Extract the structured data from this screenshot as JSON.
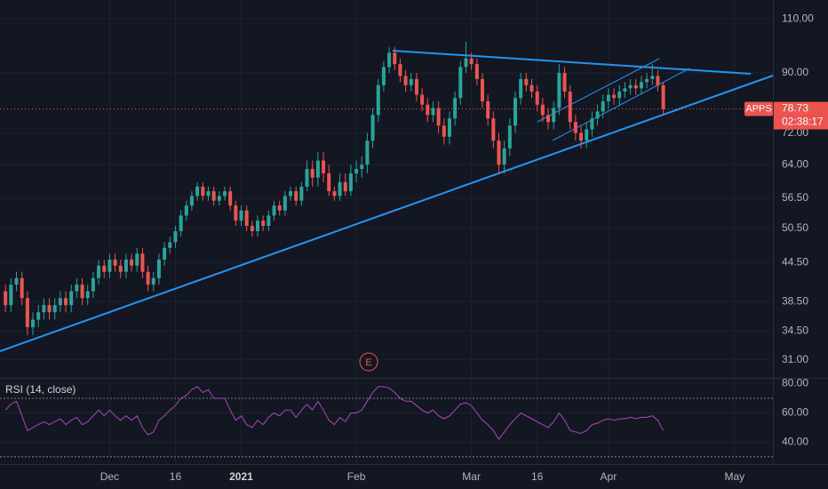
{
  "chart_data": [
    {
      "type": "candlestick",
      "symbol": "APPS",
      "last_price": 78.73,
      "countdown": "02:38:17",
      "event_marker": "E",
      "up_color": "#26a69a",
      "down_color": "#ef5350",
      "log_scale": true,
      "grid": true,
      "open": [
        40,
        38,
        41,
        42,
        39,
        35,
        36,
        37,
        38,
        37,
        38,
        39,
        38,
        40,
        41,
        39,
        40,
        42,
        44,
        43,
        45,
        44,
        43,
        45,
        44,
        46,
        43,
        41,
        42,
        45,
        47,
        48,
        50,
        53,
        55,
        57,
        59,
        57,
        58,
        56,
        57,
        58,
        55,
        52,
        54,
        51,
        50,
        52,
        51,
        53,
        55,
        54,
        57,
        58,
        56,
        59,
        63,
        61,
        65,
        62,
        58,
        57,
        60,
        58,
        62,
        63,
        64,
        70,
        77,
        86,
        92,
        97,
        93,
        89,
        86,
        88,
        83,
        80,
        77,
        79,
        74,
        71,
        76,
        82,
        92,
        95,
        93,
        88,
        81,
        76,
        70,
        64,
        68,
        74,
        82,
        88,
        86,
        84,
        80,
        77,
        75,
        79,
        90,
        84,
        75,
        72,
        70,
        73,
        76,
        78,
        81,
        83,
        82,
        84,
        85,
        86,
        85,
        87,
        88,
        89,
        86
      ],
      "high": [
        41,
        42,
        43,
        43,
        40,
        37,
        38,
        39,
        39,
        39,
        40,
        40,
        41,
        42,
        42,
        41,
        43,
        45,
        45,
        46,
        46,
        45,
        46,
        46,
        47,
        47,
        44,
        43,
        46,
        48,
        49,
        51,
        54,
        56,
        58,
        60,
        60,
        59,
        59,
        58,
        59,
        59,
        56,
        55,
        55,
        52,
        53,
        53,
        54,
        56,
        56,
        58,
        59,
        59,
        60,
        65,
        65,
        67,
        67,
        64,
        59,
        62,
        62,
        64,
        65,
        66,
        72,
        79,
        88,
        94,
        99,
        99,
        95,
        91,
        90,
        90,
        85,
        82,
        81,
        81,
        76,
        78,
        84,
        94,
        101,
        97,
        95,
        90,
        83,
        78,
        72,
        70,
        76,
        84,
        90,
        90,
        88,
        86,
        82,
        79,
        81,
        93,
        92,
        86,
        77,
        74,
        75,
        78,
        80,
        83,
        85,
        85,
        86,
        87,
        88,
        88,
        89,
        90,
        93,
        91,
        87
      ],
      "low": [
        37,
        37,
        40,
        38,
        34,
        34,
        35,
        36,
        36,
        36,
        37,
        37,
        37,
        39,
        38,
        38,
        39,
        41,
        42,
        42,
        43,
        42,
        42,
        43,
        43,
        42,
        40,
        40,
        41,
        44,
        46,
        47,
        49,
        52,
        54,
        56,
        56,
        56,
        55,
        55,
        56,
        54,
        51,
        51,
        50,
        49,
        49,
        50,
        50,
        52,
        53,
        53,
        56,
        55,
        55,
        58,
        59,
        59,
        60,
        57,
        56,
        56,
        57,
        57,
        60,
        61,
        62,
        68,
        75,
        84,
        90,
        91,
        87,
        84,
        84,
        81,
        78,
        75,
        75,
        72,
        69,
        69,
        74,
        80,
        90,
        91,
        86,
        79,
        74,
        68,
        62,
        62,
        66,
        72,
        80,
        84,
        82,
        78,
        75,
        73,
        73,
        77,
        82,
        73,
        70,
        68,
        68,
        71,
        74,
        76,
        79,
        80,
        80,
        82,
        83,
        83,
        83,
        85,
        86,
        84,
        77
      ],
      "close": [
        38,
        41,
        42,
        39,
        35,
        36,
        37,
        38,
        37,
        38,
        39,
        38,
        40,
        41,
        39,
        40,
        42,
        44,
        43,
        45,
        44,
        43,
        45,
        44,
        46,
        43,
        41,
        42,
        45,
        47,
        48,
        50,
        53,
        55,
        57,
        59,
        57,
        58,
        56,
        57,
        58,
        55,
        52,
        54,
        51,
        50,
        52,
        51,
        53,
        55,
        54,
        57,
        58,
        56,
        59,
        63,
        61,
        65,
        62,
        58,
        57,
        60,
        58,
        62,
        63,
        64,
        70,
        77,
        86,
        92,
        97,
        93,
        89,
        86,
        88,
        83,
        80,
        77,
        79,
        74,
        71,
        76,
        82,
        92,
        95,
        93,
        88,
        81,
        76,
        70,
        64,
        68,
        74,
        82,
        88,
        86,
        84,
        80,
        77,
        75,
        79,
        90,
        84,
        75,
        72,
        70,
        73,
        76,
        78,
        81,
        83,
        82,
        84,
        85,
        86,
        85,
        87,
        88,
        89,
        86,
        78.73
      ],
      "ylim": [
        29,
        118
      ],
      "yticks": [
        {
          "value": 31,
          "label": "31.00"
        },
        {
          "value": 34.5,
          "label": "34.50"
        },
        {
          "value": 38.5,
          "label": "38.50"
        },
        {
          "value": 44.5,
          "label": "44.50"
        },
        {
          "value": 50.5,
          "label": "50.50"
        },
        {
          "value": 56.5,
          "label": "56.50"
        },
        {
          "value": 64,
          "label": "64.00"
        },
        {
          "value": 72,
          "label": "72.00"
        },
        {
          "value": 90,
          "label": "90.00"
        },
        {
          "value": 110,
          "label": "110.00"
        }
      ],
      "xlim": [
        -1,
        140
      ],
      "xticks": [
        {
          "value": 19,
          "label": "Dec"
        },
        {
          "value": 31,
          "label": "16"
        },
        {
          "value": 43,
          "label": "2021"
        },
        {
          "value": 64,
          "label": "Feb"
        },
        {
          "value": 85,
          "label": "Mar"
        },
        {
          "value": 97,
          "label": "16"
        },
        {
          "value": 110,
          "label": "Apr"
        },
        {
          "value": 133,
          "label": "May"
        }
      ]
    },
    {
      "type": "line",
      "title": "RSI (14, close)",
      "color": "#ab47bc",
      "values": [
        62,
        66,
        68,
        58,
        48,
        50,
        52,
        54,
        52,
        54,
        56,
        52,
        55,
        57,
        52,
        54,
        58,
        62,
        58,
        62,
        58,
        55,
        58,
        55,
        58,
        50,
        45,
        47,
        55,
        58,
        62,
        65,
        70,
        72,
        76,
        78,
        74,
        76,
        70,
        70,
        70,
        62,
        55,
        58,
        52,
        50,
        55,
        52,
        57,
        60,
        58,
        62,
        62,
        57,
        62,
        66,
        62,
        68,
        62,
        55,
        52,
        57,
        54,
        60,
        60,
        62,
        68,
        74,
        78,
        78,
        77,
        74,
        70,
        68,
        68,
        65,
        62,
        60,
        62,
        58,
        56,
        58,
        62,
        66,
        67,
        65,
        60,
        55,
        52,
        48,
        42,
        47,
        52,
        56,
        60,
        58,
        56,
        54,
        52,
        50,
        54,
        60,
        55,
        48,
        47,
        46,
        48,
        52,
        53,
        55,
        56,
        55,
        56,
        56,
        57,
        56,
        57,
        57,
        58,
        55,
        48
      ],
      "ylim": [
        25,
        84
      ],
      "yticks": [
        {
          "value": 40,
          "label": "40.00"
        },
        {
          "value": 60,
          "label": "60.00"
        },
        {
          "value": 80,
          "label": "80.00"
        }
      ],
      "bands": [
        30,
        70
      ]
    }
  ]
}
